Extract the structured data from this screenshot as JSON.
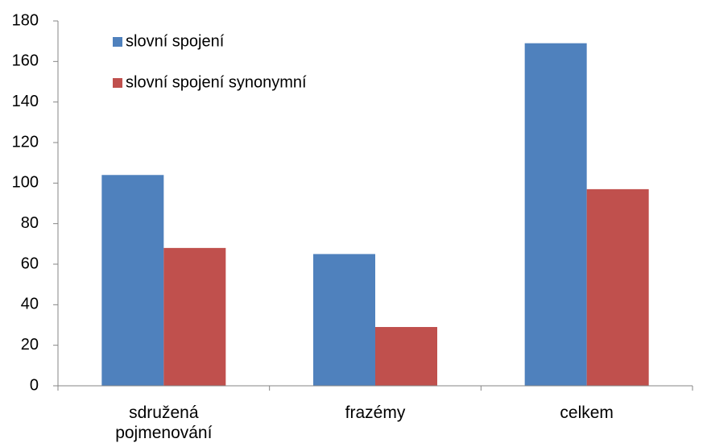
{
  "chart_data": {
    "type": "bar",
    "categories": [
      "sdružená pojmenování",
      "frazémy",
      "celkem"
    ],
    "series": [
      {
        "name": "slovní spojení",
        "color": "#4f81bd",
        "values": [
          104,
          65,
          169
        ]
      },
      {
        "name": "slovní spojení synonymní",
        "color": "#c0504d",
        "values": [
          68,
          29,
          97
        ]
      }
    ],
    "ylim": [
      0,
      180
    ],
    "yticks": [
      0,
      20,
      40,
      60,
      80,
      100,
      120,
      140,
      160,
      180
    ],
    "grid": false,
    "legend": "top-left"
  }
}
